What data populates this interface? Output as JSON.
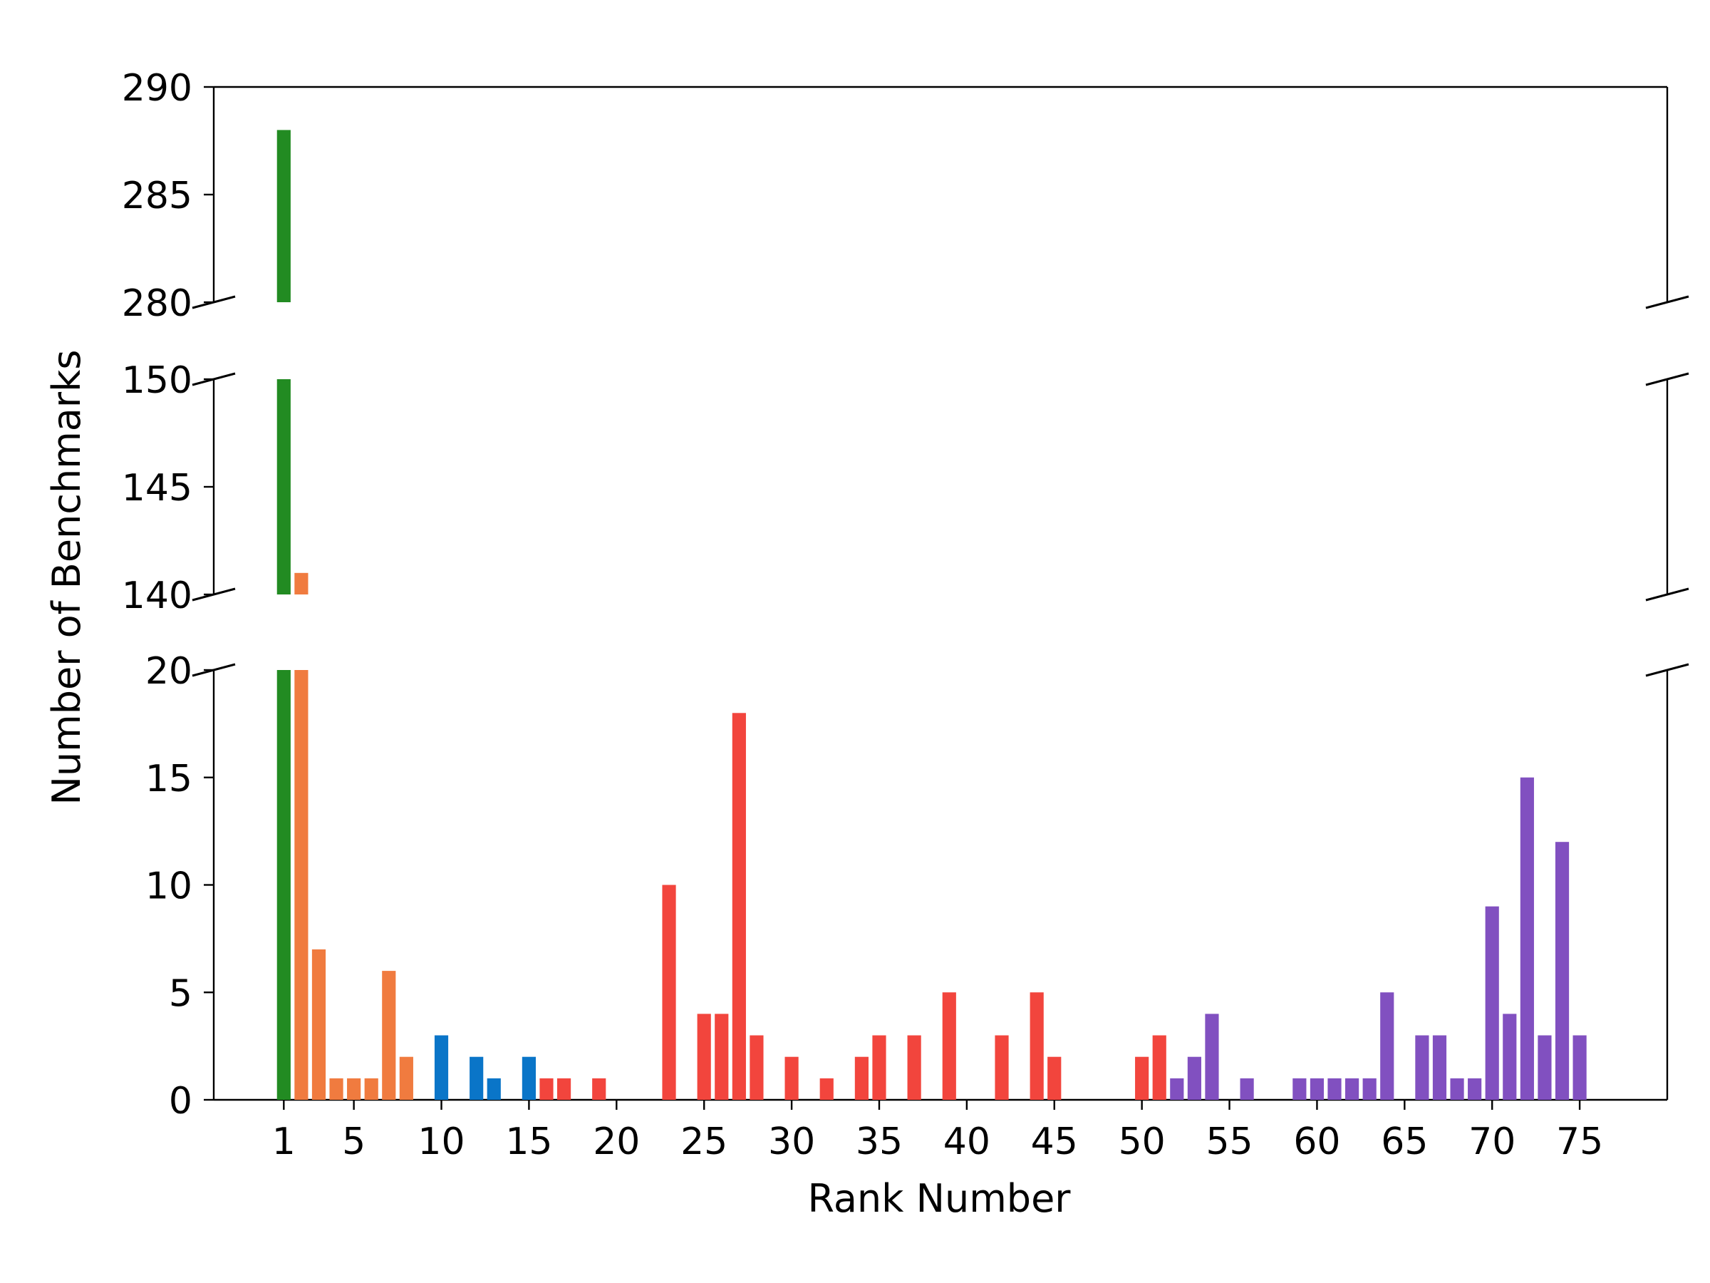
{
  "chart_data": {
    "type": "bar",
    "xlabel": "Rank Number",
    "ylabel": "Number of Benchmarks",
    "x_ticks": [
      1,
      5,
      10,
      15,
      20,
      25,
      30,
      35,
      40,
      45,
      50,
      55,
      60,
      65,
      70,
      75
    ],
    "xlim": [
      -3,
      80
    ],
    "y_axis_segments": [
      {
        "ylim": [
          280,
          290
        ],
        "ticks": [
          280,
          285,
          290
        ]
      },
      {
        "ylim": [
          140,
          150
        ],
        "ticks": [
          140,
          145,
          150
        ]
      },
      {
        "ylim": [
          0,
          20
        ],
        "ticks": [
          0,
          5,
          10,
          15,
          20
        ]
      }
    ],
    "colors": {
      "green": "#228b22",
      "orange": "#f07b3f",
      "blue": "#0a75c8",
      "red": "#f2453d",
      "purple": "#8150c0"
    },
    "series": [
      {
        "color_key": "green",
        "x": [
          1
        ],
        "values": [
          288
        ]
      },
      {
        "color_key": "orange",
        "x": [
          2,
          3,
          4,
          5,
          6,
          7,
          8
        ],
        "values": [
          141,
          7,
          1,
          1,
          1,
          6,
          2
        ]
      },
      {
        "color_key": "blue",
        "x": [
          10,
          12,
          13,
          15
        ],
        "values": [
          3,
          2,
          1,
          2
        ]
      },
      {
        "color_key": "red",
        "x": [
          16,
          17,
          19,
          23,
          25,
          26,
          27,
          28,
          30,
          32,
          34,
          35,
          37,
          39,
          42,
          44,
          45,
          50,
          51
        ],
        "values": [
          1,
          1,
          1,
          10,
          4,
          4,
          18,
          3,
          2,
          1,
          2,
          3,
          3,
          5,
          3,
          5,
          2,
          2,
          3
        ]
      },
      {
        "color_key": "purple",
        "x": [
          52,
          53,
          54,
          56,
          59,
          60,
          61,
          62,
          63,
          64,
          66,
          67,
          68,
          69,
          70,
          71,
          72,
          73,
          74,
          75
        ],
        "values": [
          1,
          2,
          4,
          1,
          1,
          1,
          1,
          1,
          1,
          5,
          3,
          3,
          1,
          1,
          9,
          4,
          15,
          3,
          12,
          3
        ]
      }
    ]
  }
}
